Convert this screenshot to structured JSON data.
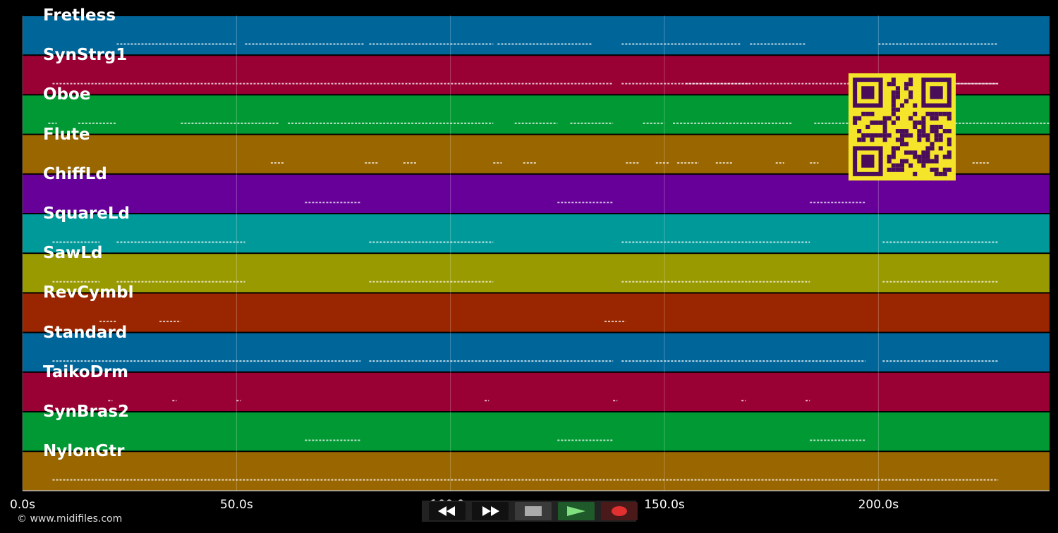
{
  "app": {
    "copyright": "© www.midifiles.com"
  },
  "tracks": [
    {
      "name": "Fretless",
      "color": "#006699"
    },
    {
      "name": "SynStrg1",
      "color": "#990033"
    },
    {
      "name": "Oboe",
      "color": "#009933"
    },
    {
      "name": "Flute",
      "color": "#996600"
    },
    {
      "name": "ChiffLd",
      "color": "#660099"
    },
    {
      "name": "SquareLd",
      "color": "#009999"
    },
    {
      "name": "SawLd",
      "color": "#999900"
    },
    {
      "name": "RevCymbl",
      "color": "#992600"
    },
    {
      "name": "Standard",
      "color": "#006699"
    },
    {
      "name": "TaikoDrm",
      "color": "#990033"
    },
    {
      "name": "SynBras2",
      "color": "#009933"
    },
    {
      "name": "NylonGtr",
      "color": "#996600"
    }
  ],
  "timeline": {
    "ticks": [
      "0.0s",
      "50.0s",
      "100.0s",
      "150.0s",
      "200.0s"
    ],
    "tick_values": [
      0,
      50,
      100,
      150,
      200
    ],
    "range_seconds": [
      0,
      240
    ]
  },
  "transport": {
    "rewind_icon": "rewind-icon",
    "fast_forward_icon": "fast-forward-icon",
    "stop_icon": "stop-icon",
    "play_icon": "play-icon",
    "record_icon": "record-icon",
    "play_color": "#80e080",
    "record_color": "#e03030"
  },
  "overlay": {
    "qr_icon": "qr-code-icon",
    "qr_color": "#f5e52a"
  }
}
